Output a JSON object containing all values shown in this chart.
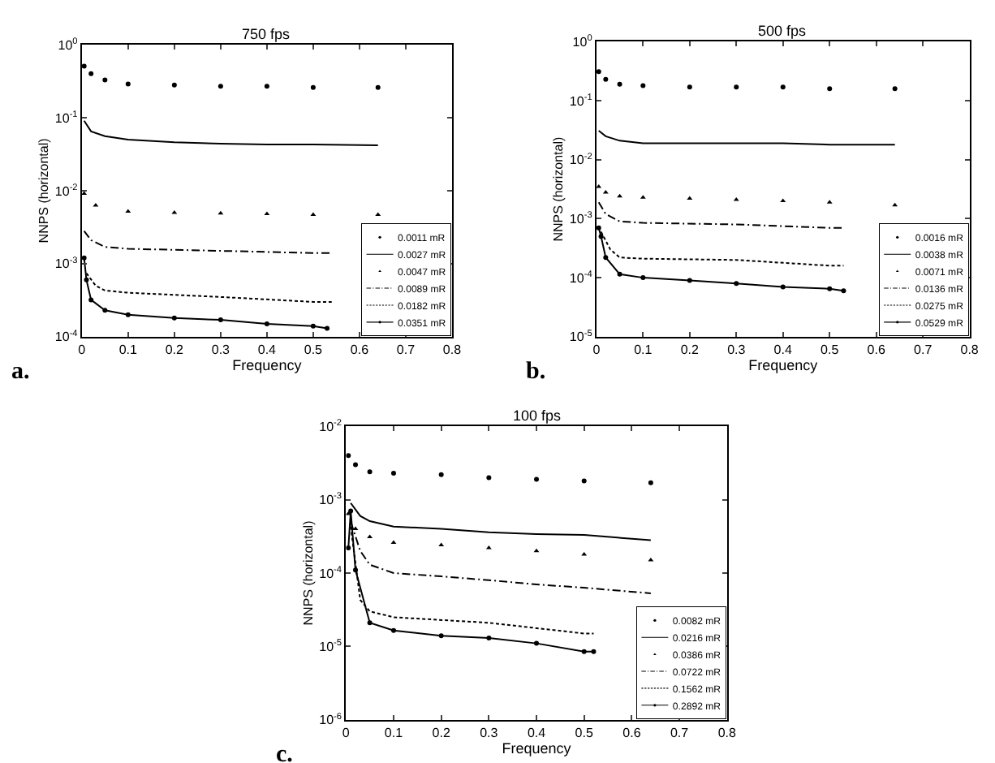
{
  "chart_data": [
    {
      "type": "line",
      "title": "750 fps",
      "xlabel": "Frequency",
      "ylabel": "NNPS (horizontal)",
      "log": "y",
      "legend": "bottom right",
      "grid": false,
      "annotations": [
        "a."
      ],
      "xlim": [
        0,
        0.8
      ],
      "xticks": [
        0,
        0.1,
        0.2,
        0.3,
        0.4,
        0.5,
        0.6,
        0.7,
        0.8
      ],
      "ylim": [
        0.0001,
        1
      ],
      "yticks": [
        {
          "value": 1,
          "label": "10$^{0}$"
        },
        {
          "value": 0.1,
          "label": "10$^{-1}$"
        },
        {
          "value": 0.01,
          "label": "10$^{-2}$"
        },
        {
          "value": 0.001,
          "label": "10$^{-3}$"
        },
        {
          "value": 0.0001,
          "label": "10$^{-4}$"
        }
      ],
      "series": [
        {
          "name": "0.0011 mR",
          "color": "#000000",
          "type": "scatter",
          "marker": "circle",
          "x": [
            0.005,
            0.02,
            0.05,
            0.1,
            0.2,
            0.3,
            0.4,
            0.5,
            0.64
          ],
          "values": [
            0.51,
            0.4,
            0.33,
            0.29,
            0.28,
            0.27,
            0.27,
            0.26,
            0.26
          ]
        },
        {
          "name": "0.0027 mR",
          "color": "#000000",
          "line_style": "solid",
          "x": [
            0.005,
            0.02,
            0.05,
            0.1,
            0.2,
            0.3,
            0.4,
            0.5,
            0.64
          ],
          "values": [
            0.091,
            0.065,
            0.056,
            0.05,
            0.046,
            0.044,
            0.043,
            0.043,
            0.042
          ]
        },
        {
          "name": "0.0047 mR",
          "color": "#000000",
          "type": "scatter",
          "marker": "triangle",
          "x": [
            0.005,
            0.03,
            0.1,
            0.2,
            0.3,
            0.4,
            0.5,
            0.64
          ],
          "values": [
            0.0091,
            0.0063,
            0.0052,
            0.005,
            0.0049,
            0.0048,
            0.0047,
            0.0047
          ]
        },
        {
          "name": "0.0089 mR",
          "color": "#000000",
          "line_style": "dashed",
          "x": [
            0.005,
            0.02,
            0.05,
            0.1,
            0.3,
            0.5,
            0.54
          ],
          "values": [
            0.0028,
            0.0021,
            0.0017,
            0.0016,
            0.0015,
            0.0014,
            0.0014
          ]
        },
        {
          "name": "0.0182 mR",
          "color": "#000000",
          "line_style": "dotted",
          "x": [
            0.01,
            0.03,
            0.05,
            0.1,
            0.3,
            0.5,
            0.54
          ],
          "values": [
            0.00074,
            0.0005,
            0.00043,
            0.0004,
            0.00035,
            0.0003,
            0.0003
          ]
        },
        {
          "name": "0.0351 mR",
          "color": "#000000",
          "line_style": "solid",
          "marker": "circle",
          "x": [
            0.005,
            0.01,
            0.02,
            0.05,
            0.1,
            0.2,
            0.3,
            0.4,
            0.5,
            0.53
          ],
          "values": [
            0.0012,
            0.0006,
            0.00032,
            0.00023,
            0.0002,
            0.00018,
            0.00017,
            0.00015,
            0.00014,
            0.00013
          ]
        }
      ]
    },
    {
      "type": "line",
      "title": "500 fps",
      "xlabel": "Frequency",
      "ylabel": "NNPS (horizontal)",
      "log": "y",
      "legend": "bottom right",
      "grid": false,
      "annotations": [
        "b."
      ],
      "xlim": [
        0,
        0.8
      ],
      "xticks": [
        0,
        0.1,
        0.2,
        0.3,
        0.4,
        0.5,
        0.6,
        0.7,
        0.8
      ],
      "ylim": [
        1e-05,
        1
      ],
      "yticks": [
        {
          "value": 1,
          "label": "10$^{0}$"
        },
        {
          "value": 0.1,
          "label": "10$^{-1}$"
        },
        {
          "value": 0.01,
          "label": "10$^{-2}$"
        },
        {
          "value": 0.001,
          "label": "10$^{-3}$"
        },
        {
          "value": 0.0001,
          "label": "10$^{-4}$"
        },
        {
          "value": 1e-05,
          "label": "10$^{-5}$"
        }
      ],
      "series": [
        {
          "name": "0.0016 mR",
          "color": "#000000",
          "type": "scatter",
          "marker": "circle",
          "x": [
            0.005,
            0.02,
            0.05,
            0.1,
            0.2,
            0.3,
            0.4,
            0.5,
            0.64
          ],
          "values": [
            0.31,
            0.23,
            0.19,
            0.18,
            0.17,
            0.17,
            0.17,
            0.16,
            0.16
          ]
        },
        {
          "name": "0.0038 mR",
          "color": "#000000",
          "line_style": "solid",
          "x": [
            0.005,
            0.02,
            0.05,
            0.1,
            0.2,
            0.3,
            0.4,
            0.5,
            0.64
          ],
          "values": [
            0.031,
            0.025,
            0.021,
            0.019,
            0.019,
            0.019,
            0.019,
            0.018,
            0.018
          ]
        },
        {
          "name": "0.0071 mR",
          "color": "#000000",
          "type": "scatter",
          "marker": "triangle",
          "x": [
            0.005,
            0.02,
            0.05,
            0.1,
            0.2,
            0.3,
            0.4,
            0.5,
            0.64
          ],
          "values": [
            0.0035,
            0.0028,
            0.0024,
            0.0023,
            0.0022,
            0.0021,
            0.002,
            0.0019,
            0.0017
          ]
        },
        {
          "name": "0.0136 mR",
          "color": "#000000",
          "line_style": "dashed",
          "x": [
            0.005,
            0.02,
            0.05,
            0.1,
            0.3,
            0.5,
            0.53
          ],
          "values": [
            0.0019,
            0.0012,
            0.0009,
            0.00085,
            0.0008,
            0.0007,
            0.0007
          ]
        },
        {
          "name": "0.0275 mR",
          "color": "#000000",
          "line_style": "dotted",
          "x": [
            0.01,
            0.03,
            0.05,
            0.1,
            0.3,
            0.5,
            0.53
          ],
          "values": [
            0.0006,
            0.0003,
            0.00022,
            0.00021,
            0.0002,
            0.00016,
            0.00016
          ]
        },
        {
          "name": "0.0529 mR",
          "color": "#000000",
          "line_style": "solid",
          "marker": "circle",
          "x": [
            0.005,
            0.01,
            0.02,
            0.05,
            0.1,
            0.2,
            0.3,
            0.4,
            0.5,
            0.53
          ],
          "values": [
            0.0007,
            0.0005,
            0.00022,
            0.000115,
            0.0001,
            9e-05,
            8e-05,
            7e-05,
            6.5e-05,
            6e-05
          ]
        }
      ]
    },
    {
      "type": "line",
      "title": "100 fps",
      "xlabel": "Frequency",
      "ylabel": "NNPS (horizontal)",
      "log": "y",
      "legend": "bottom right",
      "grid": false,
      "annotations": [
        "c."
      ],
      "xlim": [
        0,
        0.8
      ],
      "xticks": [
        0,
        0.1,
        0.2,
        0.3,
        0.4,
        0.5,
        0.6,
        0.7,
        0.8
      ],
      "ylim": [
        1e-06,
        0.01
      ],
      "yticks": [
        {
          "value": 0.01,
          "label": "10$^{-2}$"
        },
        {
          "value": 0.001,
          "label": "10$^{-3}$"
        },
        {
          "value": 0.0001,
          "label": "10$^{-4}$"
        },
        {
          "value": 1e-05,
          "label": "10$^{-5}$"
        },
        {
          "value": 1e-06,
          "label": "10$^{-6}$"
        }
      ],
      "series": [
        {
          "name": "0.0082 mR",
          "color": "#000000",
          "type": "scatter",
          "marker": "circle",
          "x": [
            0.005,
            0.02,
            0.05,
            0.1,
            0.2,
            0.3,
            0.4,
            0.5,
            0.64
          ],
          "values": [
            0.004,
            0.003,
            0.0024,
            0.0023,
            0.0022,
            0.002,
            0.0019,
            0.0018,
            0.0017
          ]
        },
        {
          "name": "0.0216 mR",
          "color": "#000000",
          "line_style": "solid",
          "x": [
            0.01,
            0.03,
            0.05,
            0.1,
            0.2,
            0.3,
            0.4,
            0.5,
            0.64
          ],
          "values": [
            0.0009,
            0.0006,
            0.00051,
            0.00043,
            0.0004,
            0.00036,
            0.00034,
            0.00033,
            0.00028
          ]
        },
        {
          "name": "0.0386 mR",
          "color": "#000000",
          "type": "scatter",
          "marker": "triangle",
          "x": [
            0.005,
            0.02,
            0.05,
            0.1,
            0.2,
            0.3,
            0.4,
            0.5,
            0.64
          ],
          "values": [
            0.00064,
            0.0004,
            0.00031,
            0.00026,
            0.00024,
            0.00022,
            0.0002,
            0.00018,
            0.00015
          ]
        },
        {
          "name": "0.0722 mR",
          "color": "#000000",
          "line_style": "dashed",
          "x": [
            0.01,
            0.03,
            0.05,
            0.1,
            0.2,
            0.3,
            0.4,
            0.5,
            0.64
          ],
          "values": [
            0.0005,
            0.0002,
            0.00013,
            0.0001,
            9e-05,
            8e-05,
            7e-05,
            6.3e-05,
            5.3e-05
          ]
        },
        {
          "name": "0.1562 mR",
          "color": "#000000",
          "line_style": "dotted",
          "x": [
            0.01,
            0.03,
            0.05,
            0.1,
            0.3,
            0.5,
            0.52
          ],
          "values": [
            0.00043,
            4.3e-05,
            3e-05,
            2.5e-05,
            2.1e-05,
            1.5e-05,
            1.5e-05
          ]
        },
        {
          "name": "0.2892 mR",
          "color": "#000000",
          "line_style": "solid",
          "marker": "circle",
          "x": [
            0.005,
            0.01,
            0.02,
            0.05,
            0.1,
            0.2,
            0.3,
            0.4,
            0.5,
            0.52
          ],
          "values": [
            0.00022,
            0.0007,
            0.00011,
            2.1e-05,
            1.65e-05,
            1.4e-05,
            1.3e-05,
            1.1e-05,
            8.5e-06,
            8.5e-06
          ]
        }
      ]
    }
  ]
}
